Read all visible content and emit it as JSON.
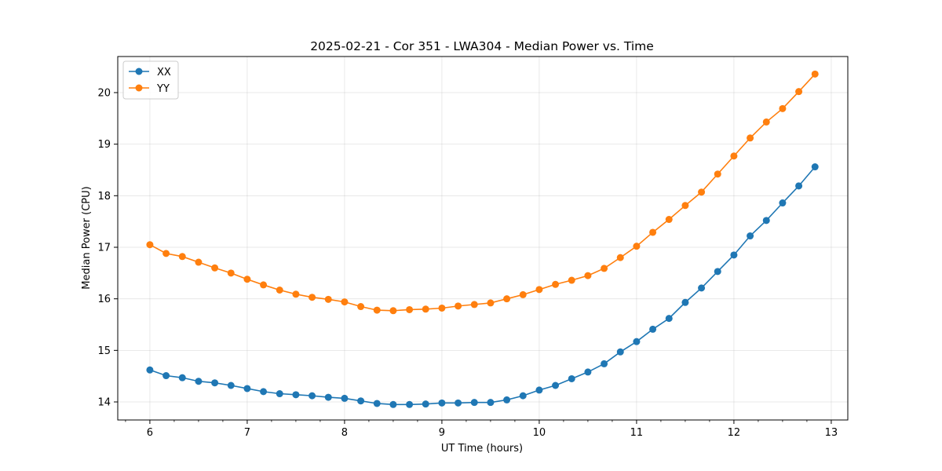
{
  "chart_data": {
    "type": "line",
    "title": "2025-02-21 - Cor 351 - LWA304 - Median Power vs. Time",
    "xlabel": "UT Time (hours)",
    "ylabel": "Median Power (CPU)",
    "xlim": [
      5.67,
      13.17
    ],
    "ylim": [
      13.65,
      20.7
    ],
    "xticks": [
      6,
      7,
      8,
      9,
      10,
      11,
      12,
      13
    ],
    "yticks": [
      14,
      15,
      16,
      17,
      18,
      19,
      20
    ],
    "grid": true,
    "legend_position": "upper-left",
    "x": [
      6.0,
      6.1667,
      6.3333,
      6.5,
      6.6667,
      6.8333,
      7.0,
      7.1667,
      7.3333,
      7.5,
      7.6667,
      7.8333,
      8.0,
      8.1667,
      8.3333,
      8.5,
      8.6667,
      8.8333,
      9.0,
      9.1667,
      9.3333,
      9.5,
      9.6667,
      9.8333,
      10.0,
      10.1667,
      10.3333,
      10.5,
      10.6667,
      10.8333,
      11.0,
      11.1667,
      11.3333,
      11.5,
      11.6667,
      11.8333,
      12.0,
      12.1667,
      12.3333,
      12.5,
      12.6667,
      12.8333
    ],
    "series": [
      {
        "name": "XX",
        "color": "#1f77b4",
        "values": [
          14.62,
          14.51,
          14.47,
          14.4,
          14.37,
          14.32,
          14.26,
          14.2,
          14.16,
          14.14,
          14.12,
          14.09,
          14.07,
          14.02,
          13.97,
          13.95,
          13.95,
          13.96,
          13.98,
          13.98,
          13.99,
          13.99,
          14.04,
          14.12,
          14.23,
          14.32,
          14.45,
          14.58,
          14.74,
          14.97,
          15.17,
          15.41,
          15.62,
          15.93,
          16.21,
          16.53,
          16.85,
          17.22,
          17.52,
          17.86,
          18.19,
          18.56
        ]
      },
      {
        "name": "YY",
        "color": "#ff7f0e",
        "values": [
          17.05,
          16.88,
          16.82,
          16.71,
          16.6,
          16.5,
          16.38,
          16.27,
          16.17,
          16.09,
          16.03,
          15.99,
          15.94,
          15.85,
          15.78,
          15.77,
          15.79,
          15.8,
          15.82,
          15.86,
          15.89,
          15.92,
          16.0,
          16.08,
          16.18,
          16.28,
          16.36,
          16.45,
          16.59,
          16.8,
          17.02,
          17.29,
          17.54,
          17.81,
          18.07,
          18.42,
          18.77,
          19.12,
          19.43,
          19.69,
          20.02,
          20.36
        ]
      }
    ]
  }
}
